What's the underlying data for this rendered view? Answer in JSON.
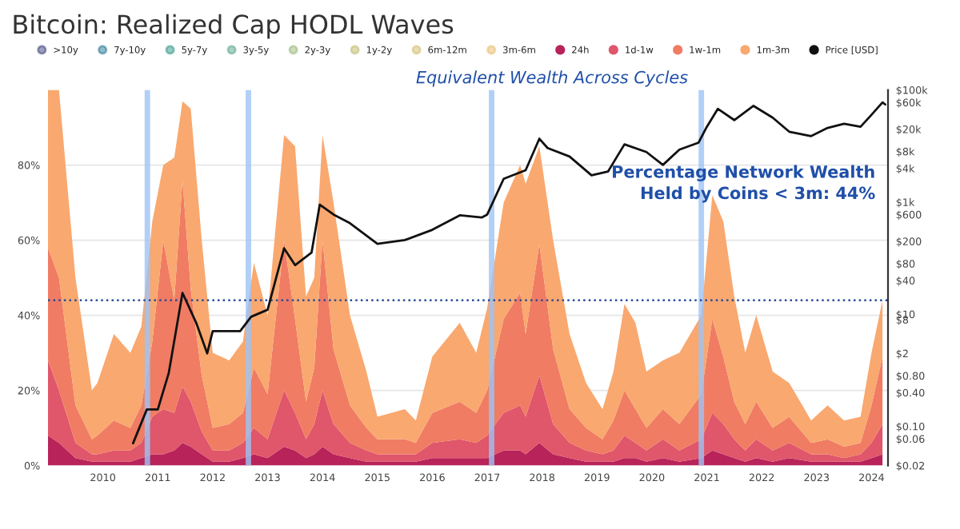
{
  "chart_data": {
    "type": "area",
    "stacked": true,
    "title": "Bitcoin: Realized Cap HODL Waves",
    "x": [
      2009.0,
      2009.2,
      2009.5,
      2009.8,
      2009.9,
      2010.2,
      2010.5,
      2010.7,
      2010.9,
      2011.1,
      2011.3,
      2011.45,
      2011.6,
      2011.8,
      2012.0,
      2012.3,
      2012.55,
      2012.75,
      2013.0,
      2013.3,
      2013.5,
      2013.7,
      2013.85,
      2014.0,
      2014.2,
      2014.5,
      2014.8,
      2015.0,
      2015.5,
      2015.7,
      2016.0,
      2016.5,
      2016.8,
      2017.0,
      2017.3,
      2017.6,
      2017.7,
      2017.95,
      2018.2,
      2018.5,
      2018.8,
      2019.1,
      2019.3,
      2019.5,
      2019.7,
      2019.9,
      2020.2,
      2020.5,
      2020.9,
      2021.1,
      2021.3,
      2021.5,
      2021.7,
      2021.9,
      2022.2,
      2022.5,
      2022.9,
      2023.2,
      2023.5,
      2023.8,
      2024.0,
      2024.2
    ],
    "series": [
      {
        "name": ">10y",
        "color": "#2b2d6e",
        "values": [
          null,
          null,
          null,
          null,
          null,
          null,
          null,
          null,
          null,
          null,
          null,
          null,
          null,
          null,
          null,
          null,
          null,
          null,
          null,
          null,
          null,
          null,
          null,
          null,
          null,
          null,
          null,
          null,
          null,
          null,
          null,
          null,
          null,
          null,
          null,
          null,
          null,
          null,
          null,
          null,
          null,
          null,
          null,
          null,
          null,
          null,
          null,
          null,
          null,
          null,
          null,
          null,
          null,
          null,
          null,
          null,
          null,
          null,
          null,
          null,
          null,
          null
        ]
      },
      {
        "name": "7y-10y",
        "color": "#0f6b8a",
        "values": [
          null,
          null,
          null,
          null,
          null,
          null,
          null,
          null,
          null,
          null,
          null,
          null,
          null,
          null,
          null,
          null,
          null,
          null,
          null,
          null,
          null,
          null,
          null,
          null,
          null,
          null,
          null,
          null,
          null,
          null,
          null,
          null,
          null,
          null,
          null,
          null,
          null,
          null,
          null,
          null,
          null,
          null,
          null,
          null,
          null,
          null,
          null,
          null,
          null,
          null,
          null,
          null,
          null,
          null,
          null,
          null,
          null,
          null,
          null,
          null,
          null,
          null
        ]
      },
      {
        "name": "5y-7y",
        "color": "#1b8c7c",
        "values": [
          null,
          null,
          null,
          null,
          null,
          null,
          null,
          null,
          null,
          null,
          null,
          null,
          null,
          null,
          null,
          null,
          null,
          null,
          null,
          null,
          null,
          null,
          null,
          null,
          null,
          null,
          null,
          null,
          null,
          null,
          null,
          null,
          null,
          null,
          null,
          null,
          null,
          null,
          null,
          null,
          null,
          null,
          null,
          null,
          null,
          null,
          null,
          null,
          null,
          null,
          null,
          null,
          null,
          null,
          null,
          null,
          null,
          null,
          null,
          null,
          null,
          null
        ]
      },
      {
        "name": "3y-5y",
        "color": "#4a9c7f",
        "values": [
          null,
          null,
          null,
          null,
          null,
          null,
          null,
          null,
          null,
          null,
          null,
          null,
          null,
          null,
          null,
          null,
          null,
          null,
          null,
          null,
          null,
          null,
          null,
          null,
          null,
          null,
          null,
          null,
          null,
          null,
          null,
          null,
          null,
          null,
          null,
          null,
          null,
          null,
          null,
          null,
          null,
          null,
          null,
          null,
          null,
          null,
          null,
          null,
          null,
          null,
          null,
          null,
          null,
          null,
          null,
          null,
          null,
          null,
          null,
          null,
          null,
          null
        ]
      },
      {
        "name": "2y-3y",
        "color": "#8fb26b",
        "values": [
          null,
          null,
          null,
          null,
          null,
          null,
          null,
          null,
          null,
          null,
          null,
          null,
          null,
          null,
          null,
          null,
          null,
          null,
          null,
          null,
          null,
          null,
          null,
          null,
          null,
          null,
          null,
          null,
          null,
          null,
          null,
          null,
          null,
          null,
          null,
          null,
          null,
          null,
          null,
          null,
          null,
          null,
          null,
          null,
          null,
          null,
          null,
          null,
          null,
          null,
          null,
          null,
          null,
          null,
          null,
          null,
          null,
          null,
          null,
          null,
          null,
          null
        ]
      },
      {
        "name": "1y-2y",
        "color": "#b8b45a",
        "values": [
          null,
          null,
          null,
          null,
          null,
          null,
          null,
          null,
          null,
          null,
          null,
          null,
          null,
          null,
          null,
          null,
          null,
          null,
          null,
          null,
          null,
          null,
          null,
          null,
          null,
          null,
          null,
          null,
          null,
          null,
          null,
          null,
          null,
          null,
          null,
          null,
          null,
          null,
          null,
          null,
          null,
          null,
          null,
          null,
          null,
          null,
          null,
          null,
          null,
          null,
          null,
          null,
          null,
          null,
          null,
          null,
          null,
          null,
          null,
          null,
          null,
          null
        ]
      },
      {
        "name": "6m-12m",
        "color": "#d1b45a",
        "values": [
          null,
          null,
          null,
          null,
          null,
          null,
          null,
          null,
          null,
          null,
          null,
          null,
          null,
          null,
          null,
          null,
          null,
          null,
          null,
          null,
          null,
          null,
          null,
          null,
          null,
          null,
          null,
          null,
          null,
          null,
          null,
          null,
          null,
          null,
          null,
          null,
          null,
          null,
          null,
          null,
          null,
          null,
          null,
          null,
          null,
          null,
          null,
          null,
          null,
          null,
          null,
          null,
          null,
          null,
          null,
          null,
          null,
          null,
          null,
          null,
          null,
          null
        ]
      },
      {
        "name": "3m-6m",
        "color": "#e6b35c",
        "values": [
          null,
          null,
          null,
          null,
          null,
          null,
          null,
          null,
          null,
          null,
          null,
          null,
          null,
          null,
          null,
          null,
          null,
          null,
          null,
          null,
          null,
          null,
          null,
          null,
          null,
          null,
          null,
          null,
          null,
          null,
          null,
          null,
          null,
          null,
          null,
          null,
          null,
          null,
          null,
          null,
          null,
          null,
          null,
          null,
          null,
          null,
          null,
          null,
          null,
          null,
          null,
          null,
          null,
          null,
          null,
          null,
          null,
          null,
          null,
          null,
          null,
          null
        ]
      },
      {
        "name": "24h",
        "color": "#b8235a",
        "values": [
          8,
          6,
          2,
          1,
          1,
          1,
          1,
          2,
          3,
          3,
          4,
          6,
          5,
          3,
          1,
          1,
          2,
          3,
          2,
          5,
          4,
          2,
          3,
          5,
          3,
          2,
          1,
          1,
          1,
          1,
          2,
          2,
          2,
          2,
          4,
          4,
          3,
          6,
          3,
          2,
          1,
          1,
          1,
          2,
          2,
          1,
          2,
          1,
          2,
          4,
          3,
          2,
          1,
          2,
          1,
          2,
          1,
          1,
          1,
          1,
          2,
          3
        ]
      },
      {
        "name": "1d-1w",
        "color": "#e0566a",
        "values": [
          20,
          14,
          4,
          2,
          2,
          3,
          3,
          4,
          10,
          12,
          10,
          15,
          12,
          6,
          3,
          3,
          4,
          7,
          5,
          15,
          10,
          5,
          8,
          15,
          8,
          4,
          3,
          2,
          2,
          2,
          4,
          5,
          4,
          6,
          10,
          12,
          10,
          18,
          8,
          4,
          3,
          2,
          3,
          6,
          4,
          3,
          5,
          3,
          5,
          10,
          8,
          5,
          3,
          5,
          3,
          4,
          2,
          2,
          1,
          2,
          4,
          8
        ]
      },
      {
        "name": "1w-1m",
        "color": "#f07c63",
        "values": [
          30,
          30,
          10,
          4,
          5,
          8,
          6,
          10,
          20,
          45,
          30,
          55,
          30,
          15,
          6,
          7,
          8,
          16,
          12,
          40,
          25,
          10,
          15,
          40,
          20,
          10,
          6,
          4,
          4,
          3,
          8,
          10,
          8,
          12,
          25,
          30,
          22,
          35,
          20,
          9,
          6,
          4,
          8,
          12,
          9,
          6,
          8,
          7,
          12,
          25,
          18,
          10,
          7,
          10,
          6,
          7,
          3,
          4,
          3,
          3,
          10,
          18
        ]
      },
      {
        "name": "1m-3m",
        "color": "#f9a86f",
        "values": [
          42,
          50,
          34,
          13,
          14,
          23,
          20,
          21,
          32,
          20,
          38,
          21,
          48,
          36,
          20,
          17,
          19,
          28,
          21,
          28,
          46,
          28,
          24,
          28,
          39,
          24,
          15,
          6,
          8,
          6,
          15,
          21,
          16,
          22,
          31,
          34,
          40,
          26,
          29,
          20,
          12,
          8,
          13,
          23,
          23,
          15,
          13,
          19,
          21,
          33,
          36,
          28,
          19,
          23,
          15,
          9,
          6,
          9,
          7,
          7,
          14,
          15
        ]
      },
      {
        "name": "Price [USD]",
        "type": "line",
        "axis": "y2",
        "color": "#111111",
        "x": [
          2010.55,
          2010.8,
          2011.0,
          2011.2,
          2011.45,
          2011.7,
          2011.9,
          2012.0,
          2012.5,
          2012.7,
          2013.0,
          2013.3,
          2013.5,
          2013.8,
          2013.95,
          2014.2,
          2014.5,
          2015.0,
          2015.5,
          2016.0,
          2016.5,
          2016.9,
          2017.0,
          2017.3,
          2017.7,
          2017.95,
          2018.1,
          2018.5,
          2018.9,
          2019.2,
          2019.5,
          2019.9,
          2020.2,
          2020.5,
          2020.85,
          2021.0,
          2021.2,
          2021.5,
          2021.85,
          2022.2,
          2022.5,
          2022.9,
          2023.2,
          2023.5,
          2023.8,
          2024.0,
          2024.2,
          2024.25
        ],
        "values": [
          0.05,
          0.2,
          0.2,
          0.9,
          24,
          7,
          2,
          5,
          5,
          9,
          12,
          150,
          75,
          125,
          900,
          600,
          420,
          180,
          210,
          320,
          580,
          530,
          600,
          2600,
          3700,
          13500,
          9200,
          6500,
          3000,
          3500,
          10700,
          7800,
          4600,
          8600,
          11500,
          22000,
          46000,
          29000,
          52000,
          32000,
          18000,
          15000,
          21000,
          25000,
          22000,
          36000,
          60000,
          55000
        ]
      }
    ],
    "xlim": [
      2009.0,
      2024.3
    ],
    "xticks": [
      2010,
      2011,
      2012,
      2013,
      2014,
      2015,
      2016,
      2017,
      2018,
      2019,
      2020,
      2021,
      2022,
      2023,
      2024
    ],
    "ylim": [
      0,
      100
    ],
    "yticks": [
      {
        "value": 0,
        "label": "0%"
      },
      {
        "value": 20,
        "label": "20%"
      },
      {
        "value": 40,
        "label": "40%"
      },
      {
        "value": 60,
        "label": "60%"
      },
      {
        "value": 80,
        "label": "80%"
      }
    ],
    "log": "y2",
    "y2lim": [
      0.02,
      100000
    ],
    "y2ticks": [
      {
        "value": 0.02,
        "label": "$0.02"
      },
      {
        "value": 0.06,
        "label": "$0.06"
      },
      {
        "value": 0.1,
        "label": "$0.10"
      },
      {
        "value": 0.4,
        "label": "$0.40"
      },
      {
        "value": 0.8,
        "label": "$0.80"
      },
      {
        "value": 2,
        "label": "$2"
      },
      {
        "value": 8,
        "label": "$8"
      },
      {
        "value": 10,
        "label": "$10"
      },
      {
        "value": 40,
        "label": "$40"
      },
      {
        "value": 80,
        "label": "$80"
      },
      {
        "value": 200,
        "label": "$200"
      },
      {
        "value": 600,
        "label": "$600"
      },
      {
        "value": 1000,
        "label": "$1k"
      },
      {
        "value": 4000,
        "label": "$4k"
      },
      {
        "value": 8000,
        "label": "$8k"
      },
      {
        "value": 20000,
        "label": "$20k"
      },
      {
        "value": 60000,
        "label": "$60k"
      },
      {
        "value": 100000,
        "label": "$100k"
      }
    ],
    "grid": "y",
    "legend": "top left",
    "ref_lines": [
      {
        "axis": "y",
        "value": 44,
        "color": "#2a4d9b",
        "line_style": "dotted"
      }
    ],
    "bands": [
      {
        "axis": "x",
        "from": 2010.76,
        "to": 2010.86,
        "color": "#9dc3f5"
      },
      {
        "axis": "x",
        "from": 2012.6,
        "to": 2012.7,
        "color": "#9dc3f5"
      },
      {
        "axis": "x",
        "from": 2017.03,
        "to": 2017.13,
        "color": "#9dc3f5"
      },
      {
        "axis": "x",
        "from": 2020.85,
        "to": 2020.95,
        "color": "#9dc3f5"
      }
    ],
    "annotations": [
      "Equivalent Wealth Across Cycles",
      "Percentage Network Wealth\nHeld by Coins < 3m: 44%"
    ]
  }
}
